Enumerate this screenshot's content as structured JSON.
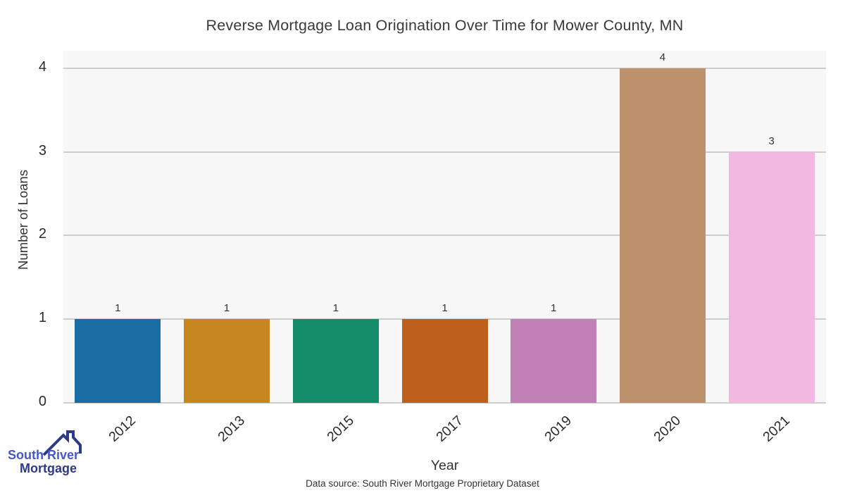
{
  "chart_data": {
    "type": "bar",
    "title": "Reverse Mortgage Loan Origination Over Time for Mower County, MN",
    "categories": [
      "2012",
      "2013",
      "2015",
      "2017",
      "2019",
      "2020",
      "2021"
    ],
    "values": [
      1,
      1,
      1,
      1,
      1,
      4,
      3
    ],
    "bar_labels": [
      "1",
      "1",
      "1",
      "1",
      "1",
      "4",
      "3"
    ],
    "bar_colors": [
      "#1b6ca3",
      "#c6871f",
      "#158c6a",
      "#bd5f1d",
      "#c081b6",
      "#bd916b",
      "#f3b8e1"
    ],
    "xlabel": "Year",
    "ylabel": "Number of Loans",
    "yticks": [
      0,
      1,
      2,
      3,
      4
    ],
    "ylim": [
      0,
      4.21
    ],
    "grid": "horizontal",
    "legend": "none",
    "plot_bg_color": "#f7f7f7",
    "grid_color": "#cdcdcd"
  },
  "footer": {
    "data_source": "Data source: South River Mortgage Proprietary Dataset"
  },
  "logo": {
    "line1": "South River",
    "line2": "Mortgage",
    "line1_color": "#4658c9",
    "line2_color": "#2d3a8a",
    "icon_color": "#2d3a8a"
  }
}
